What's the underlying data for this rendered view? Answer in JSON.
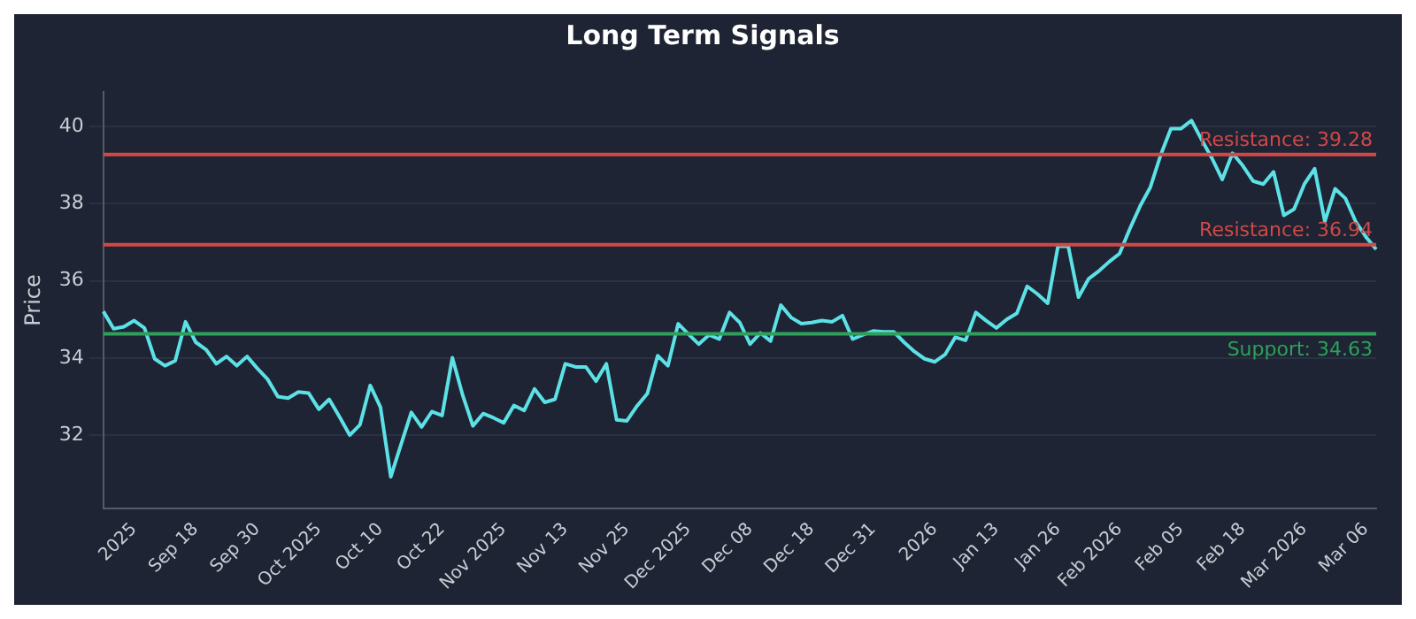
{
  "chart_data": {
    "type": "line",
    "title": "Long Term Signals",
    "ylabel": "Price",
    "categories": [
      null,
      null,
      null,
      "2025",
      null,
      null,
      null,
      null,
      null,
      "Sep 18",
      null,
      null,
      null,
      null,
      null,
      "Sep 30",
      null,
      null,
      null,
      null,
      null,
      "Oct 2025",
      null,
      null,
      null,
      null,
      null,
      "Oct 10",
      null,
      null,
      null,
      null,
      null,
      "Oct 22",
      null,
      null,
      null,
      null,
      null,
      "Nov 2025",
      null,
      null,
      null,
      null,
      null,
      "Nov 13",
      null,
      null,
      null,
      null,
      null,
      "Nov 25",
      null,
      null,
      null,
      null,
      null,
      "Dec 2025",
      null,
      null,
      null,
      null,
      null,
      "Dec 08",
      null,
      null,
      null,
      null,
      null,
      "Dec 18",
      null,
      null,
      null,
      null,
      null,
      "Dec 31",
      null,
      null,
      null,
      null,
      null,
      "2026",
      null,
      null,
      null,
      null,
      null,
      "Jan 13",
      null,
      null,
      null,
      null,
      null,
      "Jan 26",
      null,
      null,
      null,
      null,
      null,
      "Feb 2026",
      null,
      null,
      null,
      null,
      null,
      "Feb 05",
      null,
      null,
      null,
      null,
      null,
      "Feb 18",
      null,
      null,
      null,
      null,
      null,
      "Mar 2026",
      null,
      null,
      null,
      null,
      null,
      "Mar 06",
      null
    ],
    "series": [
      {
        "color": "#5ce1e6",
        "values": [
          35.21,
          34.76,
          34.81,
          34.97,
          34.78,
          33.98,
          33.8,
          33.93,
          34.94,
          34.41,
          34.22,
          33.85,
          34.04,
          33.8,
          34.04,
          33.73,
          33.45,
          33.0,
          32.96,
          33.12,
          33.09,
          32.67,
          32.93,
          32.48,
          32.0,
          32.27,
          33.29,
          32.72,
          30.92,
          31.76,
          32.59,
          32.21,
          32.61,
          32.51,
          34.01,
          33.04,
          32.24,
          32.56,
          32.45,
          32.32,
          32.77,
          32.64,
          33.2,
          32.85,
          32.93,
          33.85,
          33.77,
          33.77,
          33.4,
          33.85,
          32.4,
          32.37,
          32.76,
          33.08,
          34.06,
          33.8,
          34.89,
          34.62,
          34.36,
          34.6,
          34.49,
          35.18,
          34.92,
          34.36,
          34.65,
          34.44,
          35.37,
          35.05,
          34.89,
          34.92,
          34.97,
          34.94,
          35.1,
          34.49,
          34.6,
          34.7,
          34.68,
          34.68,
          34.41,
          34.17,
          33.98,
          33.9,
          34.09,
          34.54,
          34.46,
          35.18,
          34.97,
          34.78,
          35.0,
          35.16,
          35.86,
          35.66,
          35.42,
          36.9,
          36.9,
          35.58,
          36.06,
          36.26,
          36.5,
          36.71,
          37.35,
          37.94,
          38.43,
          39.26,
          39.95,
          39.95,
          40.16,
          39.66,
          39.18,
          38.63,
          39.31,
          38.99,
          38.59,
          38.51,
          38.83,
          37.7,
          37.86,
          38.51,
          38.91,
          37.54,
          38.39,
          38.14,
          37.54,
          37.14,
          36.82
        ]
      }
    ],
    "ylim": [
      30.1,
      40.9
    ],
    "yticks": [
      32,
      34,
      36,
      38,
      40
    ],
    "grid": "y",
    "ref_lines": [
      {
        "axis": "y",
        "value": 39.28,
        "label": "Resistance: 39.28",
        "color": "#d04848"
      },
      {
        "axis": "y",
        "value": 36.94,
        "label": "Resistance: 36.94",
        "color": "#d04848"
      },
      {
        "axis": "y",
        "value": 34.63,
        "label": "Support: 34.63",
        "color": "#2ea05a"
      }
    ]
  }
}
